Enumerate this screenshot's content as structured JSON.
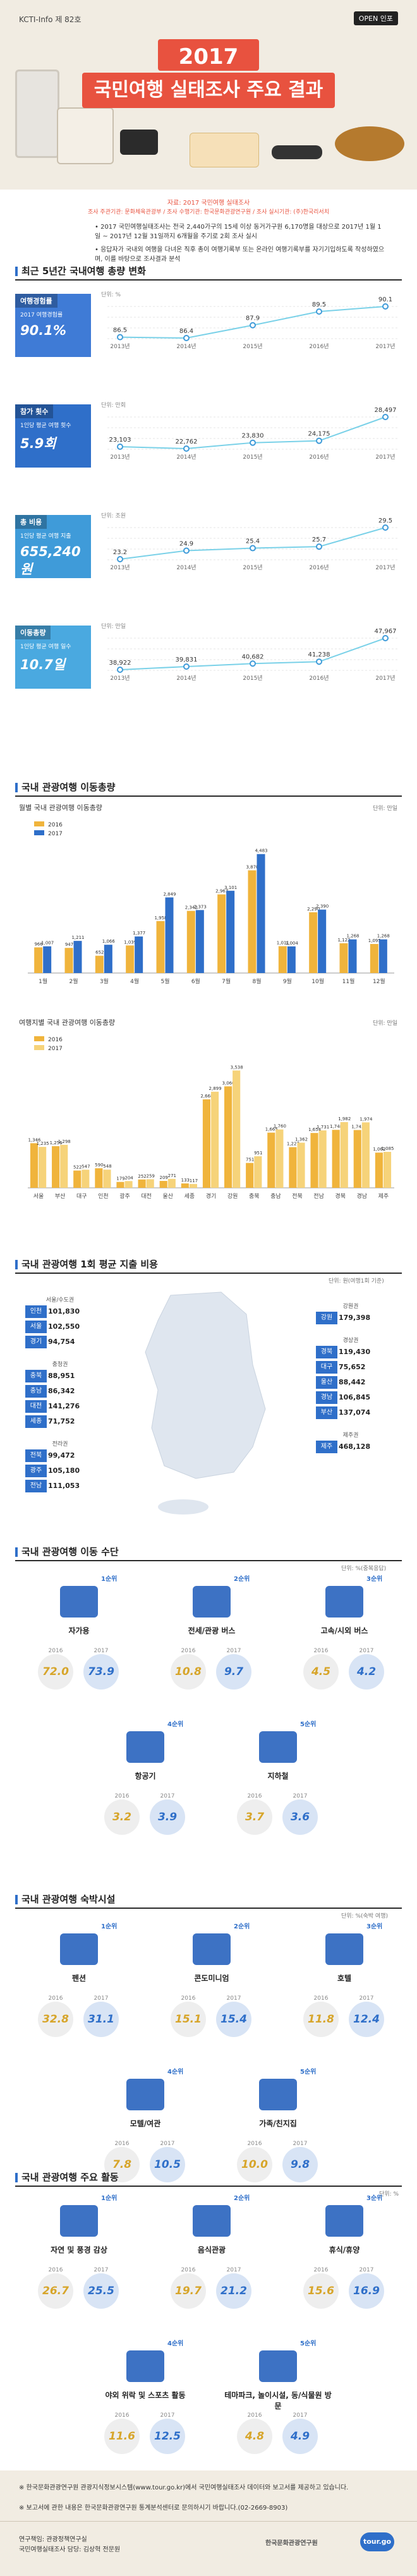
{
  "header": {
    "tag": "KCTI-Info 제 82호",
    "open_badge": "OPEN 인포",
    "year": "2017",
    "title": "국민여행 실태조사 주요 결과"
  },
  "intro": {
    "source": "자료: 2017 국민여행 실태조사",
    "orgs": "조사 주관기관: 문화체육관광부 / 조사 수행기관: 한국문화관광연구원 / 조사 실시기관: (주)한국리서치",
    "bullet1": "• 2017 국민여행실태조사는 전국 2,440가구의 15세 이상 동거가구원 6,170명을 대상으로 2017년 1월 1일 ~ 2017년 12월 31일까지 6개월을 주기로 2회 조사 실시",
    "bullet2": "• 응답자가 국내외 여행을 다녀온 직후 총이 여행기록부 또는 온라인 여행기록부를 자기기입하도록 작성하였으며, 이를 바탕으로 조사결과 분석"
  },
  "section1": {
    "title": "최근 5년간 국내여행 총량 변화",
    "kpis": [
      {
        "label": "여행경험률",
        "sub": "2017 여행경험률",
        "value": "90.1%",
        "unit": "단위: %",
        "color": "#3f7bd6",
        "years": [
          "2013년",
          "2014년",
          "2015년",
          "2016년",
          "2017년"
        ],
        "values": [
          86.5,
          86.4,
          87.9,
          89.5,
          90.1
        ]
      },
      {
        "label": "참가 횟수",
        "sub": "1인당 평균 여행 횟수",
        "value": "5.9회",
        "unit": "단위: 만회",
        "color": "#2f6fc9",
        "years": [
          "2013년",
          "2014년",
          "2015년",
          "2016년",
          "2017년"
        ],
        "values": [
          23103,
          22762,
          23830,
          24175,
          28497
        ]
      },
      {
        "label": "총 비용",
        "sub": "1인당 평균 여행 지출",
        "value": "655,240원",
        "unit": "단위: 조원",
        "color": "#3f9bd9",
        "years": [
          "2013년",
          "2014년",
          "2015년",
          "2016년",
          "2017년"
        ],
        "values": [
          23.2,
          24.9,
          25.4,
          25.7,
          29.5
        ]
      },
      {
        "label": "이동총량",
        "sub": "1인당 평균 여행 일수",
        "value": "10.7일",
        "unit": "단위: 만일",
        "color": "#4aa9e0",
        "years": [
          "2013년",
          "2014년",
          "2015년",
          "2016년",
          "2017년"
        ],
        "values": [
          38922,
          39831,
          40682,
          41238,
          47967
        ]
      }
    ]
  },
  "section2": {
    "title": "국내 관광여행 이동총량",
    "unit": "단위: 만일"
  },
  "chart_data": [
    {
      "type": "bar",
      "title": "월별 국내 관광여행 이동총량",
      "categories": [
        "1월",
        "2월",
        "3월",
        "4월",
        "5월",
        "6월",
        "7월",
        "8월",
        "9월",
        "10월",
        "11월",
        "12월"
      ],
      "series": [
        {
          "name": "2016",
          "color": "#f0b43c",
          "values": [
            966,
            947,
            652,
            1039,
            1958,
            2342,
            2963,
            3870,
            1011,
            2290,
            1122,
            1095
          ]
        },
        {
          "name": "2017",
          "color": "#2f6fc9",
          "values": [
            1007,
            1211,
            1066,
            1377,
            2849,
            2373,
            3101,
            4483,
            1004,
            2390,
            1268,
            1268
          ]
        }
      ],
      "labels_2016": [
        "966",
        "947",
        "652",
        "1,039",
        "1,958",
        "2,342",
        "2,963",
        "3,870",
        "1,011",
        "2,290",
        "1,122",
        "1,095"
      ],
      "labels_2017": [
        "1,007",
        "1,211",
        "1,066",
        "1,377",
        "2,849",
        "2,373",
        "3,101",
        "4,483",
        "1,004",
        "2,390",
        "1,268",
        "1,268"
      ],
      "ylim": [
        0,
        5000
      ]
    },
    {
      "type": "bar",
      "title": "여행지별 국내 관광여행 이동총량",
      "categories": [
        "서울",
        "부산",
        "대구",
        "인천",
        "광주",
        "대전",
        "울산",
        "세종",
        "경기",
        "강원",
        "충북",
        "충남",
        "전북",
        "전남",
        "경북",
        "경남",
        "제주"
      ],
      "series": [
        {
          "name": "2016",
          "color": "#f0b43c",
          "values": [
            1346,
            1256,
            522,
            590,
            179,
            252,
            209,
            133,
            2668,
            3060,
            751,
            1665,
            1227,
            1654,
            1748,
            1743,
            1062
          ]
        },
        {
          "name": "2017",
          "color": "#f6d37a",
          "values": [
            1235,
            1298,
            547,
            548,
            204,
            259,
            271,
            117,
            2899,
            3538,
            951,
            1760,
            1362,
            1731,
            1982,
            1974,
            1085
          ]
        }
      ],
      "labels_2016": [
        "1,346",
        "1,256",
        "522",
        "590",
        "179",
        "252",
        "209",
        "133",
        "2,668",
        "3,060",
        "751",
        "1,665",
        "1,227",
        "1,654",
        "1,748",
        "1,743",
        "1,062"
      ],
      "labels_2017": [
        "1,235",
        "1,298",
        "547",
        "548",
        "204",
        "259",
        "271",
        "117",
        "2,899",
        "3,538",
        "951",
        "1,760",
        "1,362",
        "1,731",
        "1,982",
        "1,974",
        "1,085"
      ],
      "ylim": [
        0,
        4000
      ]
    }
  ],
  "legend": {
    "y2016": "2016",
    "y2017": "2017"
  },
  "section3": {
    "title": "국내 관광여행 1회 평균 지출 비용",
    "unit": "단위: 원(여행1회 기준)",
    "left": [
      {
        "region": "서울/수도권",
        "items": [
          {
            "name": "인천",
            "value": "101,830"
          },
          {
            "name": "서울",
            "value": "102,550"
          },
          {
            "name": "경기",
            "value": "94,754"
          }
        ]
      },
      {
        "region": "충청권",
        "items": [
          {
            "name": "충북",
            "value": "88,951"
          },
          {
            "name": "충남",
            "value": "86,342"
          },
          {
            "name": "대전",
            "value": "141,276"
          },
          {
            "name": "세종",
            "value": "71,752"
          }
        ]
      },
      {
        "region": "전라권",
        "items": [
          {
            "name": "전북",
            "value": "99,472"
          },
          {
            "name": "광주",
            "value": "105,180"
          },
          {
            "name": "전남",
            "value": "111,053"
          }
        ]
      }
    ],
    "right": [
      {
        "region": "강원권",
        "items": [
          {
            "name": "강원",
            "value": "179,398"
          }
        ]
      },
      {
        "region": "경상권",
        "items": [
          {
            "name": "경북",
            "value": "119,430"
          },
          {
            "name": "대구",
            "value": "75,652"
          },
          {
            "name": "울산",
            "value": "88,442"
          },
          {
            "name": "경남",
            "value": "106,845"
          },
          {
            "name": "부산",
            "value": "137,074"
          }
        ]
      },
      {
        "region": "제주권",
        "items": [
          {
            "name": "제주",
            "value": "468,128"
          }
        ]
      }
    ]
  },
  "section4": {
    "title": "국내 관광여행 이동 수단",
    "unit": "단위: %(중복응답)",
    "items": [
      {
        "rank": "1순위",
        "name": "자가용",
        "y2016": "72.0",
        "y2017": "73.9"
      },
      {
        "rank": "2순위",
        "name": "전세/관광 버스",
        "y2016": "10.8",
        "y2017": "9.7"
      },
      {
        "rank": "3순위",
        "name": "고속/시외 버스",
        "y2016": "4.5",
        "y2017": "4.2"
      },
      {
        "rank": "4순위",
        "name": "항공기",
        "y2016": "3.2",
        "y2017": "3.9"
      },
      {
        "rank": "5순위",
        "name": "지하철",
        "y2016": "3.7",
        "y2017": "3.6"
      }
    ]
  },
  "section5": {
    "title": "국내 관광여행 숙박시설",
    "unit": "단위: %(숙박 여행)",
    "items": [
      {
        "rank": "1순위",
        "name": "펜션",
        "y2016": "32.8",
        "y2017": "31.1"
      },
      {
        "rank": "2순위",
        "name": "콘도미니엄",
        "y2016": "15.1",
        "y2017": "15.4"
      },
      {
        "rank": "3순위",
        "name": "호텔",
        "y2016": "11.8",
        "y2017": "12.4"
      },
      {
        "rank": "4순위",
        "name": "모텔/여관",
        "y2016": "7.8",
        "y2017": "10.5"
      },
      {
        "rank": "5순위",
        "name": "가족/친지집",
        "y2016": "10.0",
        "y2017": "9.8"
      }
    ]
  },
  "section6": {
    "title": "국내 관광여행 주요 활동",
    "unit": "단위: %",
    "items": [
      {
        "rank": "1순위",
        "name": "자연 및 풍경 감상",
        "y2016": "26.7",
        "y2017": "25.5"
      },
      {
        "rank": "2순위",
        "name": "음식관광",
        "y2016": "19.7",
        "y2017": "21.2"
      },
      {
        "rank": "3순위",
        "name": "휴식/휴양",
        "y2016": "15.6",
        "y2017": "16.9"
      },
      {
        "rank": "4순위",
        "name": "야외 위락 및 스포츠 활동",
        "y2016": "11.6",
        "y2017": "12.5"
      },
      {
        "rank": "5순위",
        "name": "테마파크, 놀이시설, 동/식물원 방문",
        "y2016": "4.8",
        "y2017": "4.9"
      }
    ]
  },
  "footer": {
    "note1": "※ 한국문화관광연구원 관광지식정보시스템(www.tour.go.kr)에서 국민여행실태조사 데이터와 보고서를 제공하고 있습니다.",
    "note2": "※ 보고서에 관한 내용은 한국문화관광연구원 통계분석센터로 문의하시기 바랍니다.(02-2669-8903)",
    "credit1": "연구책임: 관광정책연구실",
    "credit2": "국민여행실태조사 담당: 김상혁 전문원",
    "org": "한국문화관광연구원",
    "logo": "tour.go"
  }
}
